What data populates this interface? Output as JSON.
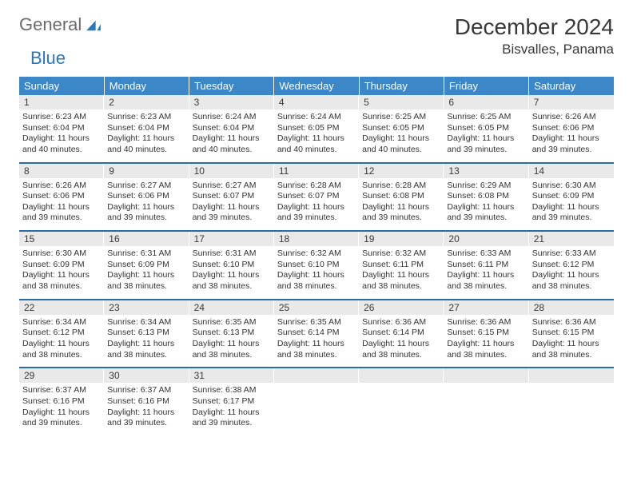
{
  "brand": {
    "word1": "General",
    "word2": "Blue",
    "text_color": "#6b6b6b",
    "accent_color": "#2a77bd"
  },
  "title": "December 2024",
  "location": "Bisvalles, Panama",
  "colors": {
    "header_bg": "#3b87c8",
    "header_text": "#ffffff",
    "daynum_bg": "#e9e9e9",
    "row_border": "#2a6ca8",
    "body_text": "#333333"
  },
  "fonts": {
    "title_size_pt": 21,
    "location_size_pt": 13,
    "weekday_size_pt": 10,
    "daynum_size_pt": 9,
    "body_size_pt": 8
  },
  "weekdays": [
    "Sunday",
    "Monday",
    "Tuesday",
    "Wednesday",
    "Thursday",
    "Friday",
    "Saturday"
  ],
  "weeks": [
    [
      {
        "day": "1",
        "sunrise": "Sunrise: 6:23 AM",
        "sunset": "Sunset: 6:04 PM",
        "daylight1": "Daylight: 11 hours",
        "daylight2": "and 40 minutes."
      },
      {
        "day": "2",
        "sunrise": "Sunrise: 6:23 AM",
        "sunset": "Sunset: 6:04 PM",
        "daylight1": "Daylight: 11 hours",
        "daylight2": "and 40 minutes."
      },
      {
        "day": "3",
        "sunrise": "Sunrise: 6:24 AM",
        "sunset": "Sunset: 6:04 PM",
        "daylight1": "Daylight: 11 hours",
        "daylight2": "and 40 minutes."
      },
      {
        "day": "4",
        "sunrise": "Sunrise: 6:24 AM",
        "sunset": "Sunset: 6:05 PM",
        "daylight1": "Daylight: 11 hours",
        "daylight2": "and 40 minutes."
      },
      {
        "day": "5",
        "sunrise": "Sunrise: 6:25 AM",
        "sunset": "Sunset: 6:05 PM",
        "daylight1": "Daylight: 11 hours",
        "daylight2": "and 40 minutes."
      },
      {
        "day": "6",
        "sunrise": "Sunrise: 6:25 AM",
        "sunset": "Sunset: 6:05 PM",
        "daylight1": "Daylight: 11 hours",
        "daylight2": "and 39 minutes."
      },
      {
        "day": "7",
        "sunrise": "Sunrise: 6:26 AM",
        "sunset": "Sunset: 6:06 PM",
        "daylight1": "Daylight: 11 hours",
        "daylight2": "and 39 minutes."
      }
    ],
    [
      {
        "day": "8",
        "sunrise": "Sunrise: 6:26 AM",
        "sunset": "Sunset: 6:06 PM",
        "daylight1": "Daylight: 11 hours",
        "daylight2": "and 39 minutes."
      },
      {
        "day": "9",
        "sunrise": "Sunrise: 6:27 AM",
        "sunset": "Sunset: 6:06 PM",
        "daylight1": "Daylight: 11 hours",
        "daylight2": "and 39 minutes."
      },
      {
        "day": "10",
        "sunrise": "Sunrise: 6:27 AM",
        "sunset": "Sunset: 6:07 PM",
        "daylight1": "Daylight: 11 hours",
        "daylight2": "and 39 minutes."
      },
      {
        "day": "11",
        "sunrise": "Sunrise: 6:28 AM",
        "sunset": "Sunset: 6:07 PM",
        "daylight1": "Daylight: 11 hours",
        "daylight2": "and 39 minutes."
      },
      {
        "day": "12",
        "sunrise": "Sunrise: 6:28 AM",
        "sunset": "Sunset: 6:08 PM",
        "daylight1": "Daylight: 11 hours",
        "daylight2": "and 39 minutes."
      },
      {
        "day": "13",
        "sunrise": "Sunrise: 6:29 AM",
        "sunset": "Sunset: 6:08 PM",
        "daylight1": "Daylight: 11 hours",
        "daylight2": "and 39 minutes."
      },
      {
        "day": "14",
        "sunrise": "Sunrise: 6:30 AM",
        "sunset": "Sunset: 6:09 PM",
        "daylight1": "Daylight: 11 hours",
        "daylight2": "and 39 minutes."
      }
    ],
    [
      {
        "day": "15",
        "sunrise": "Sunrise: 6:30 AM",
        "sunset": "Sunset: 6:09 PM",
        "daylight1": "Daylight: 11 hours",
        "daylight2": "and 38 minutes."
      },
      {
        "day": "16",
        "sunrise": "Sunrise: 6:31 AM",
        "sunset": "Sunset: 6:09 PM",
        "daylight1": "Daylight: 11 hours",
        "daylight2": "and 38 minutes."
      },
      {
        "day": "17",
        "sunrise": "Sunrise: 6:31 AM",
        "sunset": "Sunset: 6:10 PM",
        "daylight1": "Daylight: 11 hours",
        "daylight2": "and 38 minutes."
      },
      {
        "day": "18",
        "sunrise": "Sunrise: 6:32 AM",
        "sunset": "Sunset: 6:10 PM",
        "daylight1": "Daylight: 11 hours",
        "daylight2": "and 38 minutes."
      },
      {
        "day": "19",
        "sunrise": "Sunrise: 6:32 AM",
        "sunset": "Sunset: 6:11 PM",
        "daylight1": "Daylight: 11 hours",
        "daylight2": "and 38 minutes."
      },
      {
        "day": "20",
        "sunrise": "Sunrise: 6:33 AM",
        "sunset": "Sunset: 6:11 PM",
        "daylight1": "Daylight: 11 hours",
        "daylight2": "and 38 minutes."
      },
      {
        "day": "21",
        "sunrise": "Sunrise: 6:33 AM",
        "sunset": "Sunset: 6:12 PM",
        "daylight1": "Daylight: 11 hours",
        "daylight2": "and 38 minutes."
      }
    ],
    [
      {
        "day": "22",
        "sunrise": "Sunrise: 6:34 AM",
        "sunset": "Sunset: 6:12 PM",
        "daylight1": "Daylight: 11 hours",
        "daylight2": "and 38 minutes."
      },
      {
        "day": "23",
        "sunrise": "Sunrise: 6:34 AM",
        "sunset": "Sunset: 6:13 PM",
        "daylight1": "Daylight: 11 hours",
        "daylight2": "and 38 minutes."
      },
      {
        "day": "24",
        "sunrise": "Sunrise: 6:35 AM",
        "sunset": "Sunset: 6:13 PM",
        "daylight1": "Daylight: 11 hours",
        "daylight2": "and 38 minutes."
      },
      {
        "day": "25",
        "sunrise": "Sunrise: 6:35 AM",
        "sunset": "Sunset: 6:14 PM",
        "daylight1": "Daylight: 11 hours",
        "daylight2": "and 38 minutes."
      },
      {
        "day": "26",
        "sunrise": "Sunrise: 6:36 AM",
        "sunset": "Sunset: 6:14 PM",
        "daylight1": "Daylight: 11 hours",
        "daylight2": "and 38 minutes."
      },
      {
        "day": "27",
        "sunrise": "Sunrise: 6:36 AM",
        "sunset": "Sunset: 6:15 PM",
        "daylight1": "Daylight: 11 hours",
        "daylight2": "and 38 minutes."
      },
      {
        "day": "28",
        "sunrise": "Sunrise: 6:36 AM",
        "sunset": "Sunset: 6:15 PM",
        "daylight1": "Daylight: 11 hours",
        "daylight2": "and 38 minutes."
      }
    ],
    [
      {
        "day": "29",
        "sunrise": "Sunrise: 6:37 AM",
        "sunset": "Sunset: 6:16 PM",
        "daylight1": "Daylight: 11 hours",
        "daylight2": "and 39 minutes."
      },
      {
        "day": "30",
        "sunrise": "Sunrise: 6:37 AM",
        "sunset": "Sunset: 6:16 PM",
        "daylight1": "Daylight: 11 hours",
        "daylight2": "and 39 minutes."
      },
      {
        "day": "31",
        "sunrise": "Sunrise: 6:38 AM",
        "sunset": "Sunset: 6:17 PM",
        "daylight1": "Daylight: 11 hours",
        "daylight2": "and 39 minutes."
      },
      {
        "empty": true
      },
      {
        "empty": true
      },
      {
        "empty": true
      },
      {
        "empty": true
      }
    ]
  ]
}
